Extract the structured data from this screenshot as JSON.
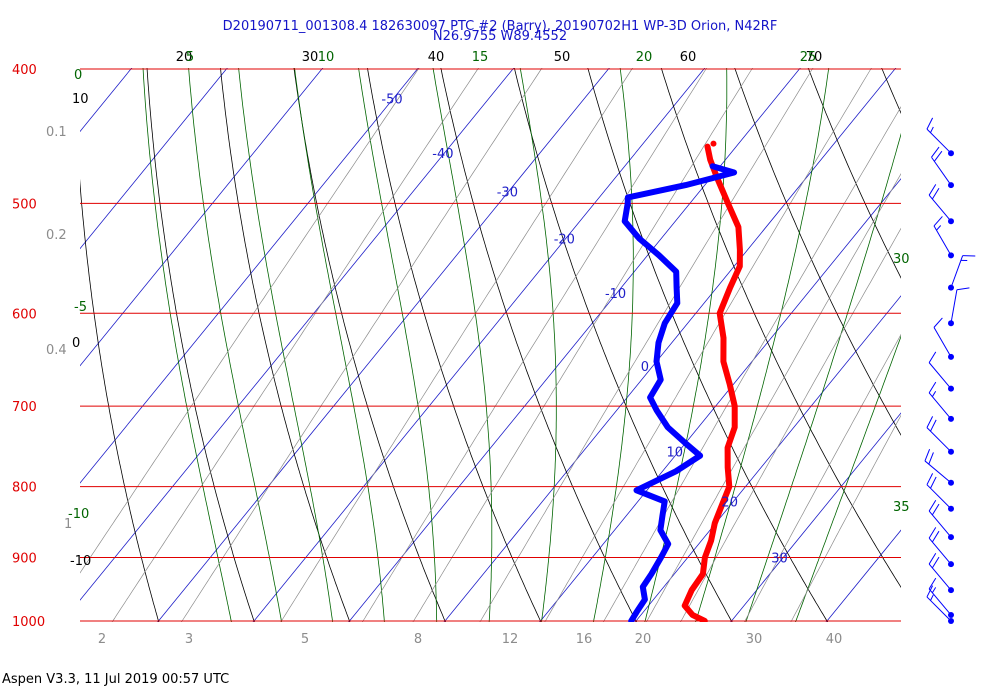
{
  "header": {
    "title_line1": "D20190711_001308.4 182630097 PTC #2 (Barry), 20190702H1 WP-3D Orion, N42RF",
    "title_line2": "N26.9755 W89.4552"
  },
  "footer": {
    "text": "Aspen V3.3, 11 Jul 2019  00:57 UTC"
  },
  "colors": {
    "isobar": "#e00000",
    "isotherm": "#1e1ec8",
    "moist_adiabat": "#006400",
    "dry_adiabat": "#000000",
    "mixing_ratio": "#8c8c8c",
    "temperature": "#ff0000",
    "dewpoint": "#0000ff"
  },
  "chart_data": {
    "type": "skew-t",
    "pressure_levels": [
      "400",
      "500",
      "600",
      "700",
      "800",
      "900",
      "1000"
    ],
    "isotherm_labels": [
      "-50",
      "-40",
      "-30",
      "-20",
      "-10",
      "0",
      "10",
      "20",
      "30"
    ],
    "dry_adiabat_top_labels": [
      "20",
      "30",
      "40",
      "50",
      "60",
      "70"
    ],
    "dry_adiabat_left_labels": [
      "10",
      "0",
      "-10"
    ],
    "moist_adiabat_top_labels": [
      "5",
      "10",
      "15",
      "20",
      "25"
    ],
    "moist_adiabat_left_labels": [
      "0",
      "-5",
      "-10"
    ],
    "moist_adiabat_right_labels": [
      "30",
      "35"
    ],
    "mixing_ratio_bottom_labels": [
      "2",
      "3",
      "5",
      "8",
      "12",
      "16",
      "20",
      "30",
      "40"
    ],
    "mixing_ratio_left_labels": [
      "0.1",
      "0.2",
      "0.4",
      "1"
    ],
    "temperature_profile": [
      {
        "p": 1000,
        "t": 27.2
      },
      {
        "p": 990,
        "t": 25.4
      },
      {
        "p": 975,
        "t": 23.8
      },
      {
        "p": 950,
        "t": 23.2
      },
      {
        "p": 925,
        "t": 23.0
      },
      {
        "p": 900,
        "t": 21.8
      },
      {
        "p": 875,
        "t": 21.0
      },
      {
        "p": 850,
        "t": 19.9
      },
      {
        "p": 825,
        "t": 19.1
      },
      {
        "p": 800,
        "t": 18.3
      },
      {
        "p": 775,
        "t": 16.5
      },
      {
        "p": 750,
        "t": 14.8
      },
      {
        "p": 725,
        "t": 13.8
      },
      {
        "p": 700,
        "t": 12.0
      },
      {
        "p": 675,
        "t": 9.6
      },
      {
        "p": 650,
        "t": 7.0
      },
      {
        "p": 625,
        "t": 5.0
      },
      {
        "p": 600,
        "t": 2.5
      },
      {
        "p": 575,
        "t": 1.4
      },
      {
        "p": 555,
        "t": 0.6
      },
      {
        "p": 540,
        "t": -0.8
      },
      {
        "p": 520,
        "t": -2.9
      },
      {
        "p": 500,
        "t": -6.0
      },
      {
        "p": 480,
        "t": -9.2
      },
      {
        "p": 465,
        "t": -11.6
      },
      {
        "p": 455,
        "t": -13.0
      }
    ],
    "dewpoint_profile": [
      {
        "p": 1000,
        "td": 19.5
      },
      {
        "p": 985,
        "td": 19.3
      },
      {
        "p": 965,
        "td": 19.1
      },
      {
        "p": 945,
        "td": 17.8
      },
      {
        "p": 925,
        "td": 17.6
      },
      {
        "p": 900,
        "td": 17.2
      },
      {
        "p": 880,
        "td": 16.8
      },
      {
        "p": 860,
        "td": 14.8
      },
      {
        "p": 840,
        "td": 13.8
      },
      {
        "p": 820,
        "td": 12.8
      },
      {
        "p": 805,
        "td": 8.9
      },
      {
        "p": 780,
        "td": 11.4
      },
      {
        "p": 760,
        "td": 12.6
      },
      {
        "p": 745,
        "td": 10.1
      },
      {
        "p": 725,
        "td": 6.8
      },
      {
        "p": 705,
        "td": 4.2
      },
      {
        "p": 690,
        "td": 2.4
      },
      {
        "p": 670,
        "td": 2.0
      },
      {
        "p": 650,
        "td": 0.0
      },
      {
        "p": 630,
        "td": -1.4
      },
      {
        "p": 610,
        "td": -2.4
      },
      {
        "p": 590,
        "td": -2.8
      },
      {
        "p": 575,
        "td": -4.2
      },
      {
        "p": 560,
        "td": -5.6
      },
      {
        "p": 545,
        "td": -8.8
      },
      {
        "p": 530,
        "td": -12.3
      },
      {
        "p": 515,
        "td": -15.3
      },
      {
        "p": 500,
        "td": -16.5
      },
      {
        "p": 495,
        "td": -17.0
      },
      {
        "p": 485,
        "td": -12.0
      },
      {
        "p": 475,
        "td": -8.0
      },
      {
        "p": 470,
        "td": -10.8
      }
    ],
    "wind_barbs": [
      {
        "p": 460,
        "dir": 315,
        "speed_kt": 15
      },
      {
        "p": 485,
        "dir": 325,
        "speed_kt": 20
      },
      {
        "p": 515,
        "dir": 320,
        "speed_kt": 20
      },
      {
        "p": 545,
        "dir": 330,
        "speed_kt": 15
      },
      {
        "p": 575,
        "dir": 20,
        "speed_kt": 15
      },
      {
        "p": 610,
        "dir": 10,
        "speed_kt": 10
      },
      {
        "p": 645,
        "dir": 330,
        "speed_kt": 10
      },
      {
        "p": 680,
        "dir": 320,
        "speed_kt": 10
      },
      {
        "p": 715,
        "dir": 320,
        "speed_kt": 15
      },
      {
        "p": 755,
        "dir": 315,
        "speed_kt": 20
      },
      {
        "p": 795,
        "dir": 310,
        "speed_kt": 20
      },
      {
        "p": 830,
        "dir": 315,
        "speed_kt": 20
      },
      {
        "p": 870,
        "dir": 320,
        "speed_kt": 20
      },
      {
        "p": 910,
        "dir": 320,
        "speed_kt": 20
      },
      {
        "p": 950,
        "dir": 320,
        "speed_kt": 20
      },
      {
        "p": 990,
        "dir": 320,
        "speed_kt": 15
      },
      {
        "p": 1000,
        "dir": 315,
        "speed_kt": 15
      }
    ]
  }
}
